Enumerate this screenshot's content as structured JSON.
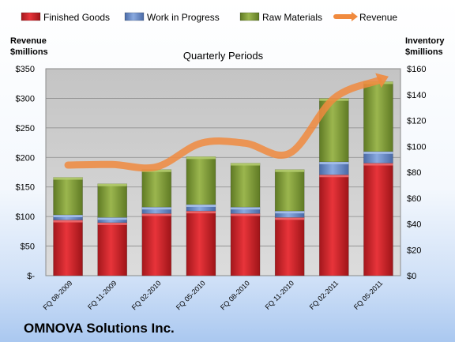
{
  "company_name": "OMNOVA Solutions Inc.",
  "colors": {
    "finished_goods": "#d9252b",
    "work_in_progress": "#6b8fcf",
    "raw_materials": "#86a23a",
    "revenue": "#f08a3e",
    "plot_background": "#bfbfbf"
  },
  "chart_data": {
    "type": "bar",
    "stacked": true,
    "title": "Quarterly Periods",
    "ylabel_left": "Revenue\n$millions",
    "ylabel_right": "Inventory\n$millions",
    "categories": [
      "FQ 08-2009",
      "FQ 11-2009",
      "FQ 02-2010",
      "FQ 05-2010",
      "FQ 08-2010",
      "FQ 11-2010",
      "FQ 02-2011",
      "FQ 05-2011"
    ],
    "left_axis": {
      "min": 0,
      "max": 350,
      "step": 50,
      "tick_labels": [
        "$-",
        "$50",
        "$100",
        "$150",
        "$200",
        "$250",
        "$300",
        "$350"
      ]
    },
    "right_axis": {
      "min": 0,
      "max": 160,
      "step": 20,
      "tick_labels": [
        "$0",
        "$20",
        "$40",
        "$60",
        "$80",
        "$100",
        "$120",
        "$140",
        "$160"
      ]
    },
    "series": [
      {
        "name": "Finished Goods",
        "axis": "right",
        "kind": "bar",
        "values": [
          43,
          41,
          48,
          50,
          48,
          45,
          78,
          87
        ]
      },
      {
        "name": "Work in Progress",
        "axis": "right",
        "kind": "bar",
        "values": [
          4,
          4,
          5,
          5,
          5,
          5,
          10,
          9
        ]
      },
      {
        "name": "Raw Materials",
        "axis": "right",
        "kind": "bar",
        "values": [
          29,
          26,
          29,
          37,
          34,
          32,
          49,
          54
        ]
      },
      {
        "name": "Revenue",
        "axis": "left",
        "kind": "line",
        "values": [
          187,
          188,
          184,
          224,
          224,
          207,
          300,
          330
        ]
      }
    ],
    "grid": true,
    "legend_position": "top"
  }
}
